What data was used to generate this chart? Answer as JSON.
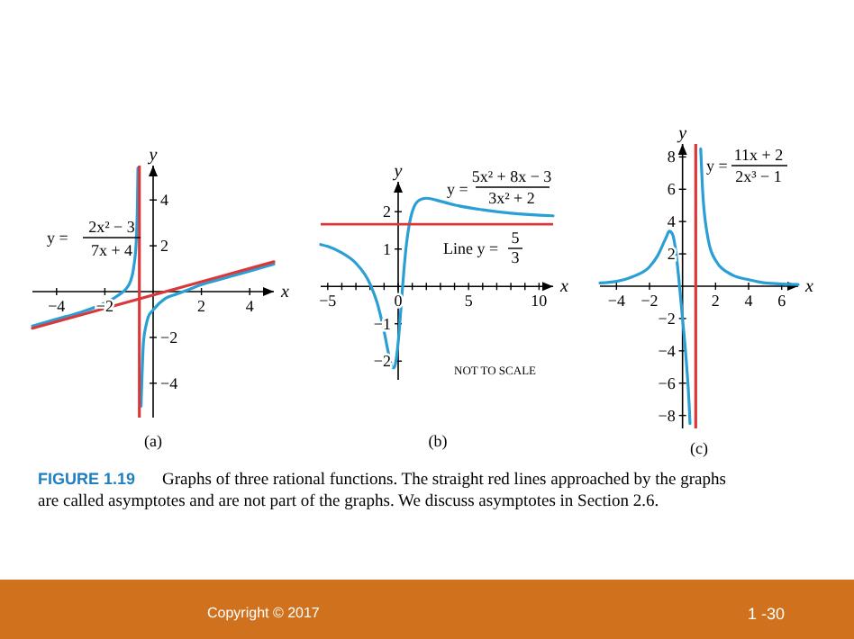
{
  "chart_data": [
    {
      "type": "line",
      "xlabel": "x",
      "ylabel": "y",
      "xlim": [
        -5,
        5
      ],
      "ylim": [
        -5.5,
        5.5
      ],
      "xticks": [
        -4,
        -2,
        2,
        4
      ],
      "yticks": [
        -4,
        -2,
        2,
        4
      ],
      "series": [
        {
          "color": "#2a9fd6",
          "x": [
            -5,
            -4,
            -3,
            -2,
            -1.5,
            -1,
            -0.8,
            -0.7,
            -0.65,
            -0.63
          ],
          "values": [
            -1.5,
            -1.2,
            -0.9,
            -0.5,
            -0.2,
            0.3,
            1.1,
            2.2,
            3.9,
            5.4
          ]
        },
        {
          "color": "#2a9fd6",
          "x": [
            -0.5,
            -0.4,
            -0.3,
            -0.2,
            0,
            0.5,
            1,
            1.5,
            2,
            3,
            4,
            5
          ],
          "values": [
            -5,
            -2.2,
            -1.5,
            -1.1,
            -0.8,
            -0.3,
            -0.1,
            0.1,
            0.3,
            0.6,
            0.9,
            1.2
          ]
        },
        {
          "color": "#d9383a",
          "x": [
            -5,
            5
          ],
          "values": [
            -1.6,
            1.3
          ]
        }
      ],
      "ref_lines": [
        {
          "axis": "x",
          "value": -0.57,
          "color": "#d9383a"
        }
      ],
      "annotations": [
        "y =",
        "2x² − 3",
        "7x + 4",
        "(a)"
      ]
    },
    {
      "type": "line",
      "xlabel": "x",
      "ylabel": "y",
      "xlim": [
        -5.5,
        11
      ],
      "ylim": [
        -2.5,
        2.8
      ],
      "xticks": [
        -5,
        {
          "value": -4,
          "label": null
        },
        {
          "value": -3,
          "label": null
        },
        {
          "value": -2,
          "label": null
        },
        {
          "value": -1,
          "label": null
        },
        0,
        {
          "value": 1,
          "label": null
        },
        {
          "value": 2,
          "label": null
        },
        {
          "value": 3,
          "label": null
        },
        {
          "value": 4,
          "label": null
        },
        5,
        {
          "value": 6,
          "label": null
        },
        {
          "value": 7,
          "label": null
        },
        {
          "value": 8,
          "label": null
        },
        {
          "value": 9,
          "label": null
        },
        10
      ],
      "yticks": [
        -2,
        -1,
        1,
        2
      ],
      "series": [
        {
          "color": "#2a9fd6",
          "x": [
            -5.5,
            -5,
            -4,
            -3,
            -2,
            -1.5,
            -1,
            -0.7,
            -0.5,
            -0.4,
            -0.3,
            -0.2,
            0,
            0.2,
            0.4,
            0.6,
            0.8,
            1,
            1.5,
            2,
            3,
            4,
            6,
            8,
            11
          ],
          "values": [
            1.12,
            1.07,
            0.9,
            0.62,
            0.07,
            -0.43,
            -1.2,
            -1.77,
            -2.09,
            -2.18,
            -2.18,
            -2.08,
            -1.5,
            -0.57,
            0.4,
            1.17,
            1.68,
            2,
            2.31,
            2.36,
            2.28,
            2.18,
            2.05,
            1.96,
            1.89
          ]
        }
      ],
      "ref_lines": [
        {
          "axis": "y",
          "value": 1.667,
          "color": "#d9383a",
          "label": "Line y ="
        }
      ],
      "annotations": [
        "y =",
        "5x² + 8x − 3",
        "3x² + 2",
        "5",
        "3",
        "NOT TO SCALE",
        "(b)"
      ]
    },
    {
      "type": "line",
      "xlabel": "x",
      "ylabel": "y",
      "xlim": [
        -5,
        7
      ],
      "ylim": [
        -8.8,
        8.8
      ],
      "xticks": [
        -4,
        -2,
        2,
        4,
        6
      ],
      "yticks": [
        -8,
        -6,
        -4,
        -2,
        2,
        4,
        6,
        8
      ],
      "series": [
        {
          "color": "#2a9fd6",
          "x": [
            -5,
            -4,
            -3,
            -2,
            -1.5,
            -1,
            -0.8,
            -0.6,
            -0.4,
            -0.2,
            0,
            0.2,
            0.4,
            0.45
          ],
          "values": [
            0.2,
            0.3,
            0.6,
            1.2,
            1.9,
            3,
            3.4,
            3.2,
            2.1,
            0.2,
            -2,
            -4.3,
            -7.3,
            -8.5
          ]
        },
        {
          "color": "#2a9fd6",
          "x": [
            1.1,
            1.2,
            1.5,
            2,
            3,
            4,
            5,
            7
          ],
          "values": [
            8.5,
            6.2,
            3.2,
            1.6,
            0.7,
            0.4,
            0.2,
            0.1
          ]
        }
      ],
      "ref_lines": [
        {
          "axis": "x",
          "value": 0.8,
          "color": "#d9383a"
        }
      ],
      "annotations": [
        "y =",
        "11x + 2",
        "2x³ − 1",
        "(c)"
      ]
    },
    {
      "type": "other",
      "annotations": [
        "FIGURE 1.19",
        "Graphs of three rational functions. The straight red lines approached by the graphs are called asymptotes and are not part of the graphs. We discuss asymptotes in Section 2.6.",
        "Copyright © 2017",
        "1 -30"
      ]
    }
  ]
}
